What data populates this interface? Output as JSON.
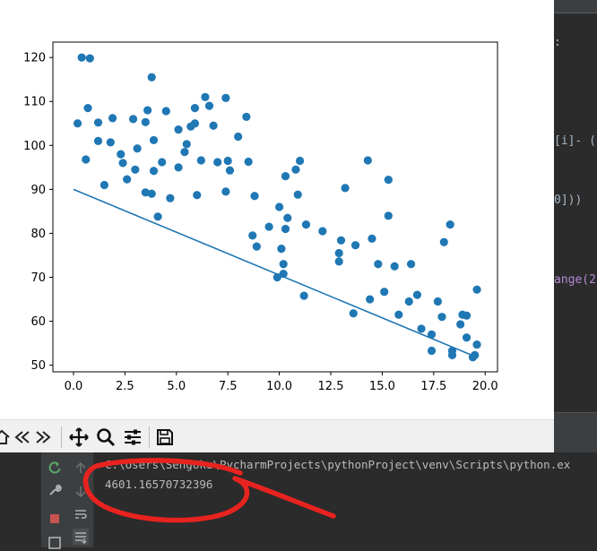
{
  "ide": {
    "snippets": [
      ":",
      "[i]- (",
      "0]))",
      "ange(2"
    ]
  },
  "toolbar": {
    "icons": [
      "home-icon",
      "back-icon",
      "forward-icon",
      "pan-icon",
      "zoom-icon",
      "configure-subplots-icon",
      "save-icon"
    ]
  },
  "console": {
    "command": "C:\\Users\\Sengoku\\PycharmProjects\\pythonProject\\venv\\Scripts\\python.ex",
    "output": "4601.16570732396"
  },
  "annotation": {
    "color": "#e8231f"
  },
  "chart_data": {
    "type": "scatter",
    "title": "",
    "xlabel": "",
    "ylabel": "",
    "xlim": [
      -1,
      20.6
    ],
    "ylim": [
      48.5,
      123.5
    ],
    "xticks": [
      "0.0",
      "2.5",
      "5.0",
      "7.5",
      "10.0",
      "12.5",
      "15.0",
      "17.5",
      "20.0"
    ],
    "xtick_values": [
      0,
      2.5,
      5,
      7.5,
      10,
      12.5,
      15,
      17.5,
      20
    ],
    "yticks": [
      "50",
      "60",
      "70",
      "80",
      "90",
      "100",
      "110",
      "120"
    ],
    "ytick_values": [
      50,
      60,
      70,
      80,
      90,
      100,
      110,
      120
    ],
    "marker_color": "#1f77b4",
    "line_color": "#1f77b4",
    "points": [
      [
        0.2,
        105
      ],
      [
        0.4,
        120
      ],
      [
        0.6,
        96.8
      ],
      [
        0.7,
        108.5
      ],
      [
        0.8,
        119.8
      ],
      [
        1.2,
        101
      ],
      [
        1.2,
        105.2
      ],
      [
        1.5,
        91
      ],
      [
        1.8,
        100.7
      ],
      [
        1.9,
        106.2
      ],
      [
        2.3,
        98
      ],
      [
        2.4,
        96
      ],
      [
        2.6,
        92.3
      ],
      [
        2.9,
        106
      ],
      [
        3.0,
        94.5
      ],
      [
        3.1,
        99.3
      ],
      [
        3.5,
        105.3
      ],
      [
        3.6,
        108
      ],
      [
        3.5,
        89.3
      ],
      [
        3.8,
        89
      ],
      [
        3.8,
        115.5
      ],
      [
        3.9,
        94.2
      ],
      [
        3.9,
        101.2
      ],
      [
        4.1,
        83.8
      ],
      [
        4.3,
        96.2
      ],
      [
        4.5,
        107.8
      ],
      [
        4.7,
        88
      ],
      [
        5.1,
        95
      ],
      [
        5.1,
        103.6
      ],
      [
        5.4,
        98.5
      ],
      [
        5.5,
        100.3
      ],
      [
        5.7,
        104.3
      ],
      [
        5.9,
        108.5
      ],
      [
        5.9,
        105
      ],
      [
        6.0,
        88.7
      ],
      [
        6.2,
        96.6
      ],
      [
        6.4,
        111
      ],
      [
        6.6,
        109
      ],
      [
        6.8,
        104.5
      ],
      [
        7.0,
        96.2
      ],
      [
        7.4,
        110.8
      ],
      [
        7.4,
        89.5
      ],
      [
        7.5,
        96.5
      ],
      [
        7.6,
        94.3
      ],
      [
        8.0,
        102
      ],
      [
        8.4,
        106.5
      ],
      [
        8.5,
        96.3
      ],
      [
        8.7,
        79.5
      ],
      [
        8.8,
        88.5
      ],
      [
        8.9,
        77
      ],
      [
        9.5,
        81.5
      ],
      [
        9.9,
        70
      ],
      [
        10.0,
        86
      ],
      [
        10.1,
        76.5
      ],
      [
        10.2,
        70.8
      ],
      [
        10.2,
        73
      ],
      [
        10.3,
        81
      ],
      [
        10.3,
        93
      ],
      [
        10.4,
        83.5
      ],
      [
        10.8,
        94.5
      ],
      [
        10.9,
        88.8
      ],
      [
        11.0,
        96.5
      ],
      [
        11.2,
        65.8
      ],
      [
        11.3,
        82
      ],
      [
        12.1,
        80.5
      ],
      [
        12.9,
        75.5
      ],
      [
        12.9,
        73.6
      ],
      [
        13.0,
        78.4
      ],
      [
        13.2,
        90.3
      ],
      [
        13.6,
        61.8
      ],
      [
        13.7,
        77.3
      ],
      [
        14.3,
        96.6
      ],
      [
        14.4,
        65
      ],
      [
        14.5,
        78.8
      ],
      [
        14.8,
        73
      ],
      [
        15.1,
        66.7
      ],
      [
        15.3,
        92.2
      ],
      [
        15.3,
        84
      ],
      [
        15.6,
        72.5
      ],
      [
        15.8,
        61.5
      ],
      [
        16.3,
        64.5
      ],
      [
        16.4,
        73
      ],
      [
        16.7,
        66
      ],
      [
        16.9,
        58.3
      ],
      [
        17.4,
        57
      ],
      [
        17.4,
        53.3
      ],
      [
        17.7,
        64.5
      ],
      [
        17.9,
        61
      ],
      [
        18.0,
        78
      ],
      [
        18.3,
        82
      ],
      [
        18.4,
        53.3
      ],
      [
        18.4,
        52.3
      ],
      [
        18.8,
        59.3
      ],
      [
        18.9,
        61.5
      ],
      [
        19.1,
        61.3
      ],
      [
        19.1,
        56.3
      ],
      [
        19.4,
        51.8
      ],
      [
        19.5,
        52.3
      ],
      [
        19.6,
        54.7
      ],
      [
        19.6,
        67.2
      ]
    ],
    "line": {
      "x": [
        0,
        19.5
      ],
      "y": [
        90,
        52
      ]
    }
  }
}
